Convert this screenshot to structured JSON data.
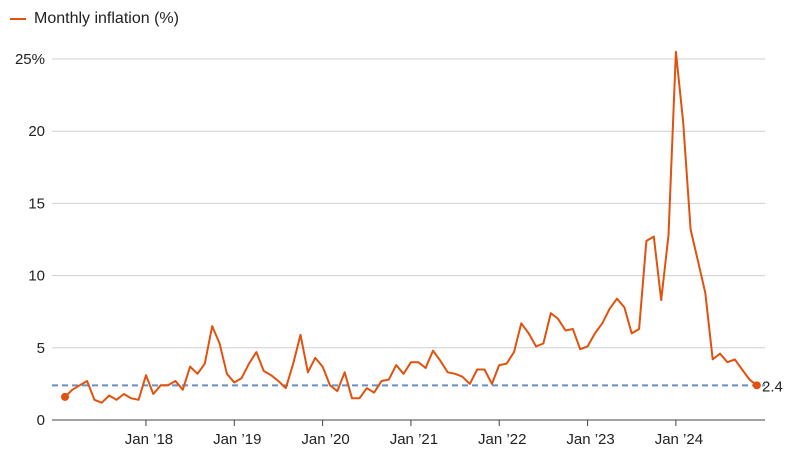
{
  "legend": {
    "label": "Monthly inflation (%)"
  },
  "chart_data": {
    "type": "line",
    "title": "",
    "xlabel": "",
    "ylabel": "",
    "ylim": [
      0,
      25
    ],
    "y_ticks": [
      {
        "value": 0,
        "label": "0"
      },
      {
        "value": 5,
        "label": "5"
      },
      {
        "value": 10,
        "label": "10"
      },
      {
        "value": 15,
        "label": "15"
      },
      {
        "value": 20,
        "label": "20"
      },
      {
        "value": 25,
        "label": "25%"
      }
    ],
    "x_ticks": [
      {
        "month_index": 11,
        "label": "Jan ’18"
      },
      {
        "month_index": 23,
        "label": "Jan ’19"
      },
      {
        "month_index": 35,
        "label": "Jan ’20"
      },
      {
        "month_index": 47,
        "label": "Jan ’21"
      },
      {
        "month_index": 59,
        "label": "Jan ’22"
      },
      {
        "month_index": 71,
        "label": "Jan ’23"
      },
      {
        "month_index": 83,
        "label": "Jan ’24"
      }
    ],
    "grid": true,
    "legend_position": "top-left",
    "series": [
      {
        "name": "Monthly inflation (%)",
        "color": "#e0520d",
        "values": [
          1.6,
          2.1,
          2.4,
          2.7,
          1.4,
          1.2,
          1.7,
          1.4,
          1.8,
          1.5,
          1.4,
          3.1,
          1.8,
          2.4,
          2.4,
          2.7,
          2.1,
          3.7,
          3.2,
          3.9,
          6.5,
          5.3,
          3.2,
          2.6,
          2.9,
          3.9,
          4.7,
          3.4,
          3.1,
          2.7,
          2.2,
          3.9,
          5.9,
          3.3,
          4.3,
          3.7,
          2.4,
          2.0,
          3.3,
          1.5,
          1.5,
          2.2,
          1.9,
          2.7,
          2.8,
          3.8,
          3.2,
          4.0,
          4.0,
          3.6,
          4.8,
          4.1,
          3.3,
          3.2,
          3.0,
          2.5,
          3.5,
          3.5,
          2.5,
          3.8,
          3.9,
          4.7,
          6.7,
          6.0,
          5.1,
          5.3,
          7.4,
          7.0,
          6.2,
          6.3,
          4.9,
          5.1,
          6.0,
          6.7,
          7.7,
          8.4,
          7.8,
          6.0,
          6.3,
          12.4,
          12.7,
          8.3,
          12.8,
          25.5,
          20.6,
          13.2,
          11.0,
          8.8,
          4.2,
          4.6,
          4.0,
          4.2,
          3.5,
          2.8,
          2.4
        ]
      }
    ],
    "reference_line": {
      "value": 2.4,
      "label": "2.4",
      "color": "#6a8fc7"
    }
  }
}
